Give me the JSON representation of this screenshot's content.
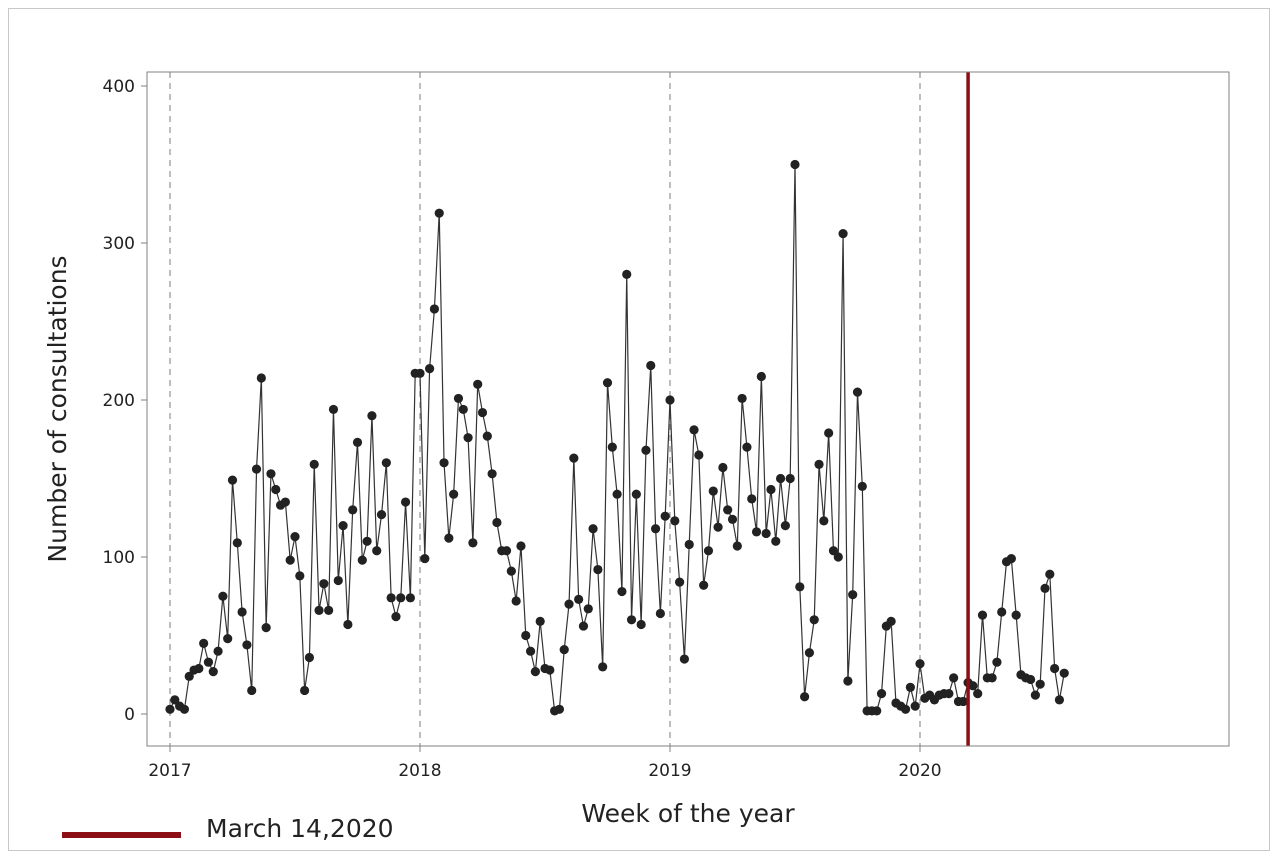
{
  "chart_data": {
    "type": "line",
    "xlabel": "Week of the year",
    "ylabel": "Number of consultations",
    "x_ticks": [
      {
        "label": "2017",
        "value": 0
      },
      {
        "label": "2018",
        "value": 52
      },
      {
        "label": "2019",
        "value": 104
      },
      {
        "label": "2020",
        "value": 156
      }
    ],
    "y_ticks": [
      0,
      100,
      200,
      300,
      400
    ],
    "xlim": [
      -4,
      184
    ],
    "ylim": [
      -20,
      410
    ],
    "vertical_reference_lines": [
      0,
      52,
      104,
      156
    ],
    "event_line": {
      "x": 166,
      "color": "#8b0f14"
    },
    "legend": {
      "label": "March 14,2020",
      "color": "#8b0f14",
      "placement": "bottom-left"
    },
    "marker_color": "#222222",
    "line_color": "#333333",
    "values": [
      3,
      9,
      5,
      3,
      24,
      28,
      29,
      45,
      33,
      27,
      40,
      75,
      48,
      149,
      109,
      65,
      44,
      15,
      156,
      214,
      55,
      153,
      143,
      133,
      135,
      98,
      113,
      88,
      15,
      36,
      159,
      66,
      83,
      66,
      194,
      85,
      120,
      57,
      130,
      173,
      98,
      110,
      190,
      104,
      127,
      160,
      74,
      62,
      74,
      135,
      74,
      217,
      217,
      99,
      220,
      258,
      319,
      160,
      112,
      140,
      201,
      194,
      176,
      109,
      210,
      192,
      177,
      153,
      122,
      104,
      104,
      91,
      72,
      107,
      50,
      40,
      27,
      59,
      29,
      28,
      2,
      3,
      41,
      70,
      163,
      73,
      56,
      67,
      118,
      92,
      30,
      211,
      170,
      140,
      78,
      280,
      60,
      140,
      57,
      168,
      222,
      118,
      64,
      126,
      200,
      123,
      84,
      35,
      108,
      181,
      165,
      82,
      104,
      142,
      119,
      157,
      130,
      124,
      107,
      201,
      170,
      137,
      116,
      215,
      115,
      143,
      110,
      150,
      120,
      150,
      350,
      81,
      11,
      39,
      60,
      159,
      123,
      179,
      104,
      100,
      306,
      21,
      76,
      205,
      145,
      2,
      2,
      2,
      13,
      56,
      59,
      7,
      5,
      3,
      17,
      5,
      32,
      10,
      12,
      9,
      12,
      13,
      13,
      23,
      8,
      8,
      20,
      18,
      13,
      63,
      23,
      23,
      33,
      65,
      97,
      99,
      63,
      25,
      23,
      22,
      12,
      19,
      80,
      89,
      29,
      9,
      26
    ]
  }
}
